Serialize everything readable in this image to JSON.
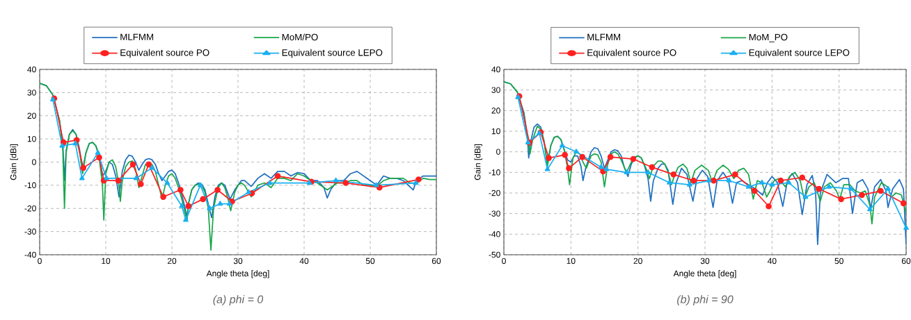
{
  "chart_data": [
    {
      "type": "line",
      "title": "(a) phi = 0",
      "xlabel": "Angle theta [deg]",
      "ylabel": "Gain [dBi]",
      "xlim": [
        0,
        60
      ],
      "ylim": [
        -40,
        40
      ],
      "xticks": [
        0,
        10,
        20,
        30,
        40,
        50,
        60
      ],
      "yticks": [
        -40,
        -30,
        -20,
        -10,
        0,
        10,
        20,
        30,
        40
      ],
      "grid": true,
      "legend": "top",
      "line_style": "solid",
      "series": [
        {
          "name": "MLFMM",
          "color": "#1f6fc0",
          "marker": "none",
          "x": [
            0,
            1,
            2,
            3,
            3.5,
            3.75,
            4,
            4.5,
            5,
            5.5,
            6,
            6.5,
            7,
            7.5,
            8,
            8.5,
            9,
            9.5,
            10,
            10.5,
            11,
            11.5,
            12,
            12.5,
            13,
            13.5,
            14,
            14.5,
            15,
            15.5,
            16,
            16.5,
            17,
            17.5,
            18,
            18.5,
            19,
            19.5,
            20,
            20.5,
            21,
            21.5,
            22,
            22.25,
            22.5,
            23,
            23.5,
            24,
            24.5,
            25,
            25.5,
            26,
            26.5,
            27,
            27.5,
            28,
            28.8,
            29.5,
            30,
            30.5,
            31,
            32,
            33,
            34,
            35,
            36,
            37,
            38,
            39,
            40,
            41,
            42,
            43,
            43.5,
            44,
            45,
            46,
            47,
            48,
            49,
            50,
            51,
            52,
            53,
            54,
            55,
            56.5,
            57,
            58,
            59,
            60
          ],
          "values": [
            34,
            33,
            29,
            18,
            8,
            -8,
            5,
            12,
            14,
            12,
            6,
            -3,
            4,
            8,
            8.5,
            7,
            3,
            -6,
            -4,
            0,
            -1,
            -6,
            -15,
            -4,
            1,
            3,
            2.5,
            0,
            -3.5,
            -1,
            1,
            1.5,
            1,
            -1,
            -5,
            -8,
            -6,
            -4,
            -3.5,
            -5,
            -9,
            -14,
            -20,
            -24,
            -18,
            -12,
            -10,
            -9,
            -9.5,
            -12,
            -18,
            -24,
            -15,
            -10,
            -9,
            -10,
            -16,
            -12,
            -10,
            -8,
            -8,
            -10.5,
            -7,
            -5,
            -7,
            -4,
            -4,
            -6,
            -4.5,
            -5,
            -8,
            -8,
            -11,
            -15.5,
            -12,
            -8,
            -8,
            -5,
            -4,
            -6,
            -8,
            -10,
            -6,
            -7,
            -7,
            -8,
            -12,
            -8,
            -6,
            -6,
            -6
          ]
        },
        {
          "name": "MoM/PO",
          "color": "#1aa64a",
          "marker": "none",
          "x": [
            0,
            1,
            2,
            3,
            3.5,
            3.75,
            4,
            4.5,
            5,
            5.5,
            6,
            6.5,
            7,
            7.5,
            8,
            8.5,
            9,
            9.5,
            9.7,
            10,
            10.5,
            11,
            11.5,
            12,
            12.2,
            12.5,
            13,
            13.5,
            14,
            14.5,
            15,
            15.5,
            16,
            16.5,
            17,
            17.5,
            18,
            18.5,
            19,
            19.5,
            20,
            20.5,
            21,
            21.5,
            22,
            22.3,
            22.5,
            23,
            23.5,
            24,
            24.5,
            25,
            25.5,
            25.9,
            26.3,
            27,
            27.5,
            28,
            28.5,
            28.9,
            29.5,
            30,
            30.5,
            31,
            32,
            33,
            34,
            35,
            36,
            37,
            38,
            39,
            40,
            41,
            42,
            43,
            43.5,
            44,
            45,
            46,
            47,
            48,
            49,
            50,
            51,
            52,
            53,
            54,
            55,
            56,
            57,
            58,
            59,
            60
          ],
          "values": [
            34,
            33,
            29,
            18,
            5,
            -20,
            4,
            12,
            13.5,
            12,
            5,
            -5,
            4,
            8,
            8.5,
            7,
            2,
            -10,
            -25,
            -5,
            0,
            1,
            -2,
            -10,
            -17,
            -8,
            -2,
            0,
            0.5,
            -3,
            -11,
            -6,
            -1,
            -0.5,
            -1,
            -4,
            -10,
            -16,
            -10,
            -6,
            -5,
            -7,
            -11,
            -16,
            -22,
            -25,
            -18,
            -12,
            -10,
            -9.5,
            -10,
            -13,
            -20,
            -38,
            -20,
            -11,
            -9,
            -11,
            -16,
            -21,
            -13,
            -10,
            -9,
            -10,
            -15,
            -10,
            -9,
            -11,
            -7,
            -7,
            -8,
            -5,
            -6,
            -8,
            -9,
            -11,
            -12,
            -11,
            -9,
            -9,
            -8,
            -8,
            -10,
            -10,
            -10.5,
            -8,
            -7,
            -7,
            -7,
            -9,
            -9,
            -7,
            -7.5,
            -7.5
          ]
        },
        {
          "name": "Equivalent source PO",
          "color": "#ff2020",
          "marker": "circle",
          "x": [
            2.2,
            3.6,
            5.6,
            6.6,
            9.0,
            9.7,
            11.9,
            14.1,
            15.3,
            16.5,
            18.7,
            21.3,
            22.5,
            24.7,
            26.9,
            29.1,
            32.1,
            36.0,
            41.1,
            46.3,
            51.4,
            57.3
          ],
          "values": [
            27.5,
            8.5,
            9.5,
            -2.5,
            2,
            -8,
            -8,
            -1,
            -9.5,
            -1,
            -15,
            -12,
            -19,
            -16,
            -12,
            -17,
            -13.5,
            -6,
            -8.5,
            -9,
            -11,
            -7.5
          ]
        },
        {
          "name": "Equivalent source LEPO",
          "color": "#1ab0f0",
          "marker": "triangle",
          "x": [
            2.0,
            3.4,
            5.4,
            6.4,
            8.8,
            10.1,
            14.6,
            17.0,
            19.3,
            21.5,
            22.1,
            24.3,
            25.7,
            27.3,
            28.7,
            31.6,
            34.8,
            40.8,
            44.8,
            50.9,
            56.9
          ],
          "values": [
            27,
            7,
            8,
            -7,
            4,
            -7,
            -7,
            -2.5,
            -9,
            -19,
            -25,
            -10,
            -20,
            -18,
            -18,
            -13,
            -9,
            -9,
            -8,
            -10,
            -9
          ]
        }
      ]
    },
    {
      "type": "line",
      "title": "(b) phi = 90",
      "xlabel": "Angle theta [deg]",
      "ylabel": "Gain [dBi]",
      "xlim": [
        0,
        60
      ],
      "ylim": [
        -50,
        40
      ],
      "xticks": [
        0,
        10,
        20,
        30,
        40,
        50,
        60
      ],
      "yticks": [
        -50,
        -40,
        -30,
        -20,
        -10,
        0,
        10,
        20,
        30,
        40
      ],
      "grid": true,
      "legend": "top",
      "line_style": "solid",
      "series": [
        {
          "name": "MLFMM",
          "color": "#1f6fc0",
          "marker": "none",
          "x": [
            0,
            1,
            2,
            3,
            3.5,
            3.7,
            4,
            4.5,
            5,
            5.5,
            6,
            6.5,
            7,
            7.5,
            8,
            8.5,
            9,
            9.5,
            10,
            10.5,
            11,
            11.5,
            11.8,
            12.2,
            13,
            13.5,
            14,
            14.5,
            15,
            15.5,
            16,
            16.5,
            17,
            17.5,
            18,
            18.5,
            19,
            19.5,
            20,
            20.5,
            21,
            21.5,
            21.9,
            22.3,
            23,
            23.5,
            24,
            24.5,
            25.2,
            25.7,
            26.5,
            27.3,
            28.2,
            28.8,
            29.6,
            30.4,
            31.2,
            31.8,
            32.7,
            33.5,
            34.1,
            34.7,
            35.5,
            36.5,
            37.5,
            38.6,
            39.3,
            40,
            40.8,
            41.6,
            42.3,
            43,
            43.8,
            44.5,
            45.2,
            46,
            46.5,
            46.8,
            47.2,
            48.2,
            49.5,
            50.5,
            51.4,
            52,
            52.7,
            53.5,
            54.3,
            54.7,
            55.3,
            56.2,
            57,
            57.3,
            58,
            59,
            59.6,
            60
          ],
          "values": [
            34,
            33,
            29,
            19,
            8,
            -3,
            5,
            12,
            13.5,
            12,
            5,
            -6,
            3,
            7,
            7.5,
            6,
            1,
            -4,
            -5,
            -2,
            -2,
            -7,
            -14,
            -8,
            0,
            2,
            1.5,
            -2,
            -8,
            -4,
            0,
            1,
            0.5,
            -2,
            -8,
            -12,
            -6,
            -3,
            -2,
            -3,
            -7,
            -13,
            -24,
            -14,
            -8,
            -6,
            -6,
            -9,
            -25.5,
            -15,
            -8,
            -11,
            -24,
            -13,
            -9,
            -12,
            -27,
            -14,
            -10,
            -14,
            -25,
            -15,
            -14,
            -16,
            -18,
            -21,
            -15,
            -12,
            -15,
            -26.5,
            -14,
            -10.5,
            -15,
            -30.5,
            -16,
            -11.5,
            -20,
            -45,
            -20,
            -11,
            -15,
            -13,
            -13,
            -30,
            -15,
            -13.5,
            -18,
            -28,
            -17,
            -13.5,
            -19,
            -27,
            -18,
            -13.5,
            -18,
            -45
          ]
        },
        {
          "name": "MoM_PO",
          "color": "#1aa64a",
          "marker": "none",
          "x": [
            0,
            1,
            2,
            3,
            3.5,
            3.9,
            4.3,
            5,
            5.5,
            6,
            6.5,
            7,
            7.5,
            8,
            8.5,
            9,
            9.5,
            9.8,
            10.3,
            10.8,
            11.3,
            11.8,
            12.3,
            13,
            13.5,
            14,
            14.5,
            15,
            15.5,
            16,
            16.5,
            17,
            17.5,
            18.3,
            19,
            19.5,
            20,
            20.5,
            21.2,
            21.7,
            22.3,
            23,
            23.5,
            24,
            24.5,
            25,
            25.5,
            26,
            26.7,
            27.3,
            27.9,
            28.5,
            29.5,
            30.5,
            31.1,
            31.8,
            32.7,
            33.5,
            34.3,
            35,
            35.8,
            36.5,
            37.2,
            37.8,
            38.5,
            39.2,
            39.7,
            40.3,
            41,
            42,
            42.6,
            43.4,
            44.2,
            44.8,
            45.5,
            46.3,
            47.2,
            47.8,
            48.7,
            49.6,
            50.1,
            50.7,
            51.6,
            52.4,
            53.2,
            53.9,
            54.6,
            54.9,
            55.3,
            56.3,
            57.2,
            57.8,
            58.5,
            59.3,
            60
          ],
          "values": [
            34,
            33,
            29,
            18,
            7,
            -1,
            6,
            12.5,
            11,
            5,
            -7,
            3,
            7,
            7.5,
            6,
            1,
            -8,
            -16,
            -3,
            0,
            -1,
            -5,
            -8,
            -2,
            -1,
            -1.5,
            -5,
            -17,
            -6,
            -1,
            0,
            -1,
            -4,
            -10,
            -5,
            -2.5,
            -2,
            -3,
            -8,
            -13,
            -7,
            -4.5,
            -4.5,
            -6,
            -10,
            -16,
            -11,
            -7.5,
            -6,
            -8,
            -15,
            -9,
            -6.5,
            -9,
            -15,
            -9,
            -6.5,
            -8.5,
            -13,
            -9,
            -8,
            -11,
            -23,
            -14,
            -15,
            -22,
            -19,
            -14,
            -13,
            -17,
            -12,
            -10,
            -14,
            -23,
            -17,
            -15,
            -24,
            -17,
            -15,
            -19,
            -23,
            -16,
            -16,
            -19,
            -20,
            -19,
            -26,
            -35,
            -22,
            -15,
            -17,
            -22,
            -20,
            -21,
            -30
          ]
        },
        {
          "name": "Equivalent source PO",
          "color": "#ff2020",
          "marker": "circle",
          "x": [
            2.3,
            3.8,
            5.5,
            6.7,
            9.1,
            9.7,
            11.7,
            14.8,
            15.9,
            19.3,
            22.1,
            25.3,
            28.3,
            31.3,
            34.5,
            37.4,
            39.5,
            41.3,
            44.5,
            47.0,
            50.3,
            53.4,
            56.2,
            59.6
          ],
          "values": [
            27,
            4.5,
            9.5,
            -3,
            -1.5,
            -8,
            -2.5,
            -9.5,
            -2.5,
            -3.5,
            -7.5,
            -11,
            -14,
            -14,
            -11,
            -19,
            -26.5,
            -14,
            -12.5,
            -18,
            -23,
            -21,
            -19,
            -25
          ]
        },
        {
          "name": "Equivalent source LEPO",
          "color": "#1ab0f0",
          "marker": "triangle",
          "x": [
            2.1,
            3.6,
            5.3,
            6.5,
            8.7,
            10.8,
            14.5,
            15.3,
            18.3,
            21.5,
            24.7,
            27.7,
            30.6,
            33.6,
            36.5,
            38.5,
            40.0,
            42.5,
            45.0,
            48.5,
            51.8,
            54.6,
            57.3,
            60
          ],
          "values": [
            26.5,
            4.5,
            9,
            -8.5,
            3,
            0,
            -7.5,
            -8.5,
            -10,
            -10,
            -15,
            -16,
            -14,
            -14,
            -17,
            -15,
            -16,
            -15,
            -22,
            -17,
            -18,
            -28,
            -18,
            -37
          ]
        }
      ]
    }
  ]
}
